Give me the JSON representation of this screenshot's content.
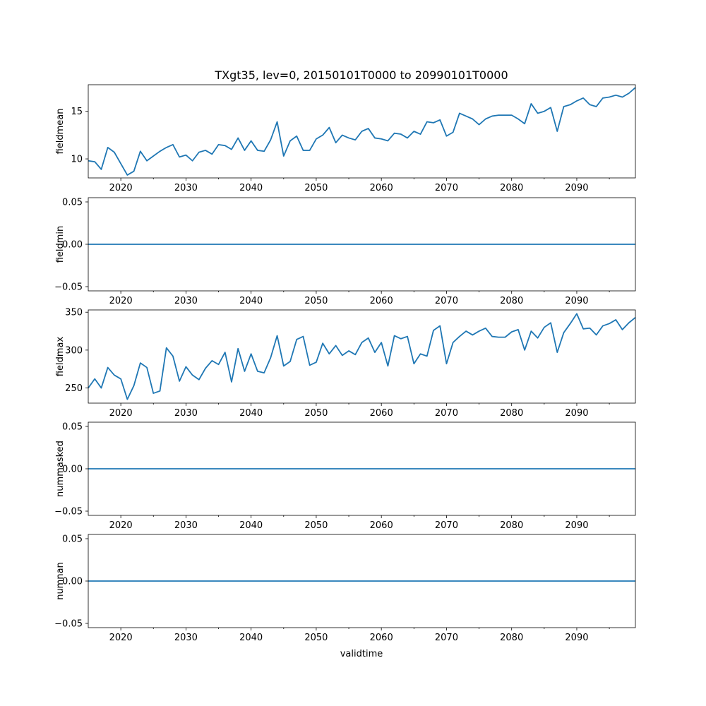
{
  "figure": {
    "title": "TXgt35, lev=0, 20150101T0000 to 20990101T0000",
    "xlabel": "validtime",
    "line_color": "#1f77b4"
  },
  "chart_data": [
    {
      "type": "line",
      "ylabel": "fieldmean",
      "xlim": [
        2015,
        2099
      ],
      "ylim": [
        8.0,
        17.8
      ],
      "xticks": [
        2020,
        2030,
        2040,
        2050,
        2060,
        2070,
        2080,
        2090
      ],
      "yticks": [
        10,
        15
      ],
      "ytick_labels": [
        "10",
        "15"
      ],
      "x": [
        2015,
        2016,
        2017,
        2018,
        2019,
        2020,
        2021,
        2022,
        2023,
        2024,
        2025,
        2026,
        2027,
        2028,
        2029,
        2030,
        2031,
        2032,
        2033,
        2034,
        2035,
        2036,
        2037,
        2038,
        2039,
        2040,
        2041,
        2042,
        2043,
        2044,
        2045,
        2046,
        2047,
        2048,
        2049,
        2050,
        2051,
        2052,
        2053,
        2054,
        2055,
        2056,
        2057,
        2058,
        2059,
        2060,
        2061,
        2062,
        2063,
        2064,
        2065,
        2066,
        2067,
        2068,
        2069,
        2070,
        2071,
        2072,
        2073,
        2074,
        2075,
        2076,
        2077,
        2078,
        2079,
        2080,
        2081,
        2082,
        2083,
        2084,
        2085,
        2086,
        2087,
        2088,
        2089,
        2090,
        2091,
        2092,
        2093,
        2094,
        2095,
        2096,
        2097,
        2098,
        2099
      ],
      "y": [
        9.8,
        9.7,
        8.9,
        11.2,
        10.7,
        9.5,
        8.3,
        8.7,
        10.8,
        9.8,
        10.3,
        10.8,
        11.2,
        11.5,
        10.2,
        10.4,
        9.8,
        10.7,
        10.9,
        10.5,
        11.5,
        11.4,
        11.0,
        12.2,
        10.9,
        11.9,
        10.9,
        10.8,
        12.0,
        13.9,
        10.3,
        11.9,
        12.4,
        10.9,
        10.9,
        12.1,
        12.5,
        13.3,
        11.7,
        12.5,
        12.2,
        12.0,
        12.9,
        13.2,
        12.2,
        12.1,
        11.9,
        12.7,
        12.6,
        12.2,
        12.9,
        12.6,
        13.9,
        13.8,
        14.1,
        12.4,
        12.8,
        14.8,
        14.5,
        14.2,
        13.6,
        14.2,
        14.5,
        14.6,
        14.6,
        14.6,
        14.2,
        13.7,
        15.8,
        14.8,
        15.0,
        15.4,
        12.9,
        15.5,
        15.7,
        16.1,
        16.4,
        15.7,
        15.5,
        16.4,
        16.5,
        16.7,
        16.5,
        16.9,
        17.5
      ]
    },
    {
      "type": "line",
      "ylabel": "fieldmin",
      "xlim": [
        2015,
        2099
      ],
      "ylim": [
        -0.055,
        0.055
      ],
      "xticks": [
        2020,
        2030,
        2040,
        2050,
        2060,
        2070,
        2080,
        2090
      ],
      "yticks": [
        -0.05,
        0.0,
        0.05
      ],
      "ytick_labels": [
        "−0.05",
        "0.00",
        "0.05"
      ],
      "x": [
        2015,
        2099
      ],
      "y": [
        0.0,
        0.0
      ]
    },
    {
      "type": "line",
      "ylabel": "fieldmax",
      "xlim": [
        2015,
        2099
      ],
      "ylim": [
        230,
        353
      ],
      "xticks": [
        2020,
        2030,
        2040,
        2050,
        2060,
        2070,
        2080,
        2090
      ],
      "yticks": [
        250,
        300,
        350
      ],
      "ytick_labels": [
        "250",
        "300",
        "350"
      ],
      "x": [
        2015,
        2016,
        2017,
        2018,
        2019,
        2020,
        2021,
        2022,
        2023,
        2024,
        2025,
        2026,
        2027,
        2028,
        2029,
        2030,
        2031,
        2032,
        2033,
        2034,
        2035,
        2036,
        2037,
        2038,
        2039,
        2040,
        2041,
        2042,
        2043,
        2044,
        2045,
        2046,
        2047,
        2048,
        2049,
        2050,
        2051,
        2052,
        2053,
        2054,
        2055,
        2056,
        2057,
        2058,
        2059,
        2060,
        2061,
        2062,
        2063,
        2064,
        2065,
        2066,
        2067,
        2068,
        2069,
        2070,
        2071,
        2072,
        2073,
        2074,
        2075,
        2076,
        2077,
        2078,
        2079,
        2080,
        2081,
        2082,
        2083,
        2084,
        2085,
        2086,
        2087,
        2088,
        2089,
        2090,
        2091,
        2092,
        2093,
        2094,
        2095,
        2096,
        2097,
        2098,
        2099
      ],
      "y": [
        250,
        262,
        250,
        277,
        267,
        262,
        235,
        253,
        283,
        277,
        243,
        246,
        303,
        292,
        259,
        278,
        267,
        261,
        276,
        286,
        281,
        297,
        258,
        302,
        272,
        295,
        272,
        270,
        290,
        319,
        279,
        285,
        314,
        318,
        280,
        284,
        309,
        295,
        306,
        293,
        299,
        294,
        310,
        316,
        297,
        310,
        279,
        319,
        315,
        318,
        282,
        295,
        292,
        326,
        332,
        282,
        310,
        318,
        325,
        320,
        325,
        329,
        318,
        317,
        317,
        324,
        327,
        300,
        325,
        316,
        330,
        336,
        297,
        323,
        335,
        348,
        328,
        329,
        320,
        332,
        335,
        340,
        327,
        336,
        343
      ]
    },
    {
      "type": "line",
      "ylabel": "nummasked",
      "xlim": [
        2015,
        2099
      ],
      "ylim": [
        -0.055,
        0.055
      ],
      "xticks": [
        2020,
        2030,
        2040,
        2050,
        2060,
        2070,
        2080,
        2090
      ],
      "yticks": [
        -0.05,
        0.0,
        0.05
      ],
      "ytick_labels": [
        "−0.05",
        "0.00",
        "0.05"
      ],
      "x": [
        2015,
        2099
      ],
      "y": [
        0.0,
        0.0
      ]
    },
    {
      "type": "line",
      "ylabel": "numnan",
      "xlim": [
        2015,
        2099
      ],
      "ylim": [
        -0.055,
        0.055
      ],
      "xticks": [
        2020,
        2030,
        2040,
        2050,
        2060,
        2070,
        2080,
        2090
      ],
      "yticks": [
        -0.05,
        0.0,
        0.05
      ],
      "ytick_labels": [
        "−0.05",
        "0.00",
        "0.05"
      ],
      "x": [
        2015,
        2099
      ],
      "y": [
        0.0,
        0.0
      ]
    }
  ]
}
